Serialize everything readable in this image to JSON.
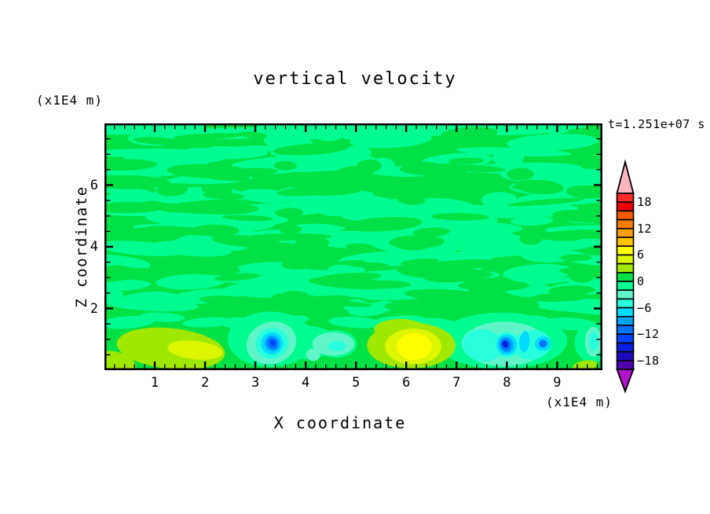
{
  "chart_data": {
    "type": "filled_contour",
    "title": "vertical velocity",
    "time_label": "t=1.251e+07 s",
    "x_axis": {
      "label": "X coordinate",
      "unit_label": "(x1E4 m)",
      "min": 0,
      "max": 9.9,
      "major_tick_values": [
        1,
        2,
        3,
        4,
        5,
        6,
        7,
        8,
        9
      ],
      "minor_tick_step": 0.2
    },
    "y_axis": {
      "label": "Z coordinate",
      "unit_label": "(x1E4 m)",
      "min": 0,
      "max": 8,
      "major_tick_values": [
        2,
        4,
        6
      ],
      "minor_tick_step": 0.5
    },
    "colorbar": {
      "level_min": -20,
      "level_max": 20,
      "level_step": 2,
      "labels": [
        {
          "text": "18",
          "value": 18
        },
        {
          "text": "12",
          "value": 12
        },
        {
          "text": "6",
          "value": 6
        },
        {
          "text": "0",
          "value": 0
        },
        {
          "text": "−6",
          "value": -6
        },
        {
          "text": "−12",
          "value": -12
        },
        {
          "text": "−18",
          "value": -18
        }
      ],
      "colors_top_to_bottom": [
        "#FF2A2A",
        "#F00000",
        "#FA5A00",
        "#FF7D00",
        "#FF9E00",
        "#FFC300",
        "#FFFF00",
        "#DCF500",
        "#A0E800",
        "#00E145",
        "#00FB90",
        "#5FF5C8",
        "#28FFDC",
        "#00DCFF",
        "#00A5FF",
        "#0073FF",
        "#0041FA",
        "#0A1EE1",
        "#1E0ABE",
        "#5000AF"
      ],
      "over_color": "#FFB4BE",
      "under_color": "#AF14C8"
    },
    "field": {
      "background_level_color": "#00E145",
      "streak_color": "#00FB90",
      "texture": {
        "seed": 42,
        "spring_count": 170,
        "green_count": 92
      },
      "features": [
        {
          "x": 0.45,
          "z": 1.55,
          "rx": 0.55,
          "rz": 0.2,
          "rot": -4,
          "color": "#00FB90"
        },
        {
          "x": 1.15,
          "z": 1.72,
          "rx": 0.45,
          "rz": 0.15,
          "rot": 3,
          "color": "#00FB90"
        },
        {
          "x": 2.05,
          "z": 1.55,
          "rx": 0.5,
          "rz": 0.16,
          "rot": -3,
          "color": "#00FB90"
        },
        {
          "x": 2.78,
          "z": 1.5,
          "rx": 0.5,
          "rz": 0.2,
          "rot": 4,
          "color": "#00FB90"
        },
        {
          "x": 3.62,
          "z": 1.62,
          "rx": 0.45,
          "rz": 0.15,
          "rot": -4,
          "color": "#00FB90"
        },
        {
          "x": 5.0,
          "z": 1.55,
          "rx": 0.55,
          "rz": 0.18,
          "rot": 3,
          "color": "#00FB90"
        },
        {
          "x": 5.88,
          "z": 1.62,
          "rx": 0.5,
          "rz": 0.15,
          "rot": -3,
          "color": "#00FB90"
        },
        {
          "x": 6.62,
          "z": 1.5,
          "rx": 0.45,
          "rz": 0.18,
          "rot": 4,
          "color": "#00FB90"
        },
        {
          "x": 8.35,
          "z": 1.58,
          "rx": 0.5,
          "rz": 0.18,
          "rot": -4,
          "color": "#00FB90"
        },
        {
          "x": 9.25,
          "z": 1.5,
          "rx": 0.55,
          "rz": 0.2,
          "rot": 3,
          "color": "#00FB90"
        },
        {
          "x": 3.3,
          "z": 1.0,
          "rx": 0.85,
          "rz": 0.9,
          "rot": 0,
          "color": "#00FB90"
        },
        {
          "x": 3.95,
          "z": 0.9,
          "rx": 0.7,
          "rz": 0.55,
          "rot": 0,
          "color": "#00FB90"
        },
        {
          "x": 4.6,
          "z": 0.85,
          "rx": 0.42,
          "rz": 0.45,
          "rot": 0,
          "color": "#00FB90"
        },
        {
          "x": 7.9,
          "z": 0.95,
          "rx": 1.3,
          "rz": 0.92,
          "rot": 0,
          "color": "#00FB90"
        },
        {
          "x": 9.7,
          "z": 0.9,
          "rx": 0.35,
          "rz": 0.65,
          "rot": 0,
          "color": "#00FB90"
        },
        {
          "x": 1.32,
          "z": 0.7,
          "rx": 1.08,
          "rz": 0.66,
          "rot": 6,
          "color": "#A0E800"
        },
        {
          "x": 1.8,
          "z": 0.65,
          "rx": 0.55,
          "rz": 0.3,
          "rot": 6,
          "color": "#DCF500"
        },
        {
          "x": 0.05,
          "z": 0.08,
          "rx": 0.58,
          "rz": 0.55,
          "rot": 0,
          "color": "#A0E800"
        },
        {
          "x": 9.55,
          "z": 0.14,
          "rx": 0.25,
          "rz": 0.17,
          "rot": -10,
          "color": "#A0E800"
        },
        {
          "x": 5.88,
          "z": 1.32,
          "rx": 0.52,
          "rz": 0.34,
          "rot": 0,
          "color": "#A0E800"
        },
        {
          "x": 6.1,
          "z": 0.8,
          "rx": 0.88,
          "rz": 0.74,
          "rot": 0,
          "color": "#A0E800"
        },
        {
          "x": 6.14,
          "z": 0.77,
          "rx": 0.56,
          "rz": 0.58,
          "rot": 0,
          "color": "#DCF500"
        },
        {
          "x": 6.16,
          "z": 0.77,
          "rx": 0.35,
          "rz": 0.44,
          "rot": 0,
          "color": "#FFFF00"
        },
        {
          "x": 3.32,
          "z": 0.88,
          "rx": 0.5,
          "rz": 0.68,
          "rot": -18,
          "color": "#5FF5C8"
        },
        {
          "x": 3.33,
          "z": 0.87,
          "rx": 0.33,
          "rz": 0.5,
          "rot": -20,
          "color": "#28FFDC"
        },
        {
          "x": 3.33,
          "z": 0.87,
          "rx": 0.22,
          "rz": 0.36,
          "rot": -22,
          "color": "#00DCFF"
        },
        {
          "x": 3.34,
          "z": 0.87,
          "rx": 0.15,
          "rz": 0.26,
          "rot": -25,
          "color": "#00A5FF"
        },
        {
          "x": 3.34,
          "z": 0.87,
          "rx": 0.1,
          "rz": 0.19,
          "rot": -25,
          "color": "#0073FF"
        },
        {
          "x": 3.35,
          "z": 0.89,
          "rx": 0.05,
          "rz": 0.1,
          "rot": -25,
          "color": "#0041FA"
        },
        {
          "x": 4.55,
          "z": 0.85,
          "rx": 0.42,
          "rz": 0.38,
          "rot": 0,
          "color": "#5FF5C8"
        },
        {
          "x": 4.62,
          "z": 0.78,
          "rx": 0.18,
          "rz": 0.16,
          "rot": 0,
          "color": "#28FFDC"
        },
        {
          "x": 4.15,
          "z": 0.5,
          "rx": 0.14,
          "rz": 0.2,
          "rot": 0,
          "color": "#5FF5C8"
        },
        {
          "x": 7.95,
          "z": 0.85,
          "rx": 0.85,
          "rz": 0.72,
          "rot": 0,
          "color": "#5FF5C8"
        },
        {
          "x": 7.52,
          "z": 0.8,
          "rx": 0.4,
          "rz": 0.52,
          "rot": 8,
          "color": "#28FFDC"
        },
        {
          "x": 8.5,
          "z": 0.82,
          "rx": 0.38,
          "rz": 0.48,
          "rot": -8,
          "color": "#28FFDC"
        },
        {
          "x": 8.0,
          "z": 0.82,
          "rx": 0.26,
          "rz": 0.42,
          "rot": -12,
          "color": "#28FFDC"
        },
        {
          "x": 8.0,
          "z": 0.82,
          "rx": 0.2,
          "rz": 0.34,
          "rot": -14,
          "color": "#00DCFF"
        },
        {
          "x": 7.99,
          "z": 0.82,
          "rx": 0.14,
          "rz": 0.26,
          "rot": -15,
          "color": "#00A5FF"
        },
        {
          "x": 7.98,
          "z": 0.82,
          "rx": 0.1,
          "rz": 0.19,
          "rot": -15,
          "color": "#0073FF"
        },
        {
          "x": 7.97,
          "z": 0.84,
          "rx": 0.055,
          "rz": 0.115,
          "rot": -15,
          "color": "#0A1EE1"
        },
        {
          "x": 8.35,
          "z": 0.92,
          "rx": 0.1,
          "rz": 0.35,
          "rot": 5,
          "color": "#00DCFF"
        },
        {
          "x": 8.72,
          "z": 0.86,
          "rx": 0.16,
          "rz": 0.24,
          "rot": 0,
          "color": "#00DCFF"
        },
        {
          "x": 8.72,
          "z": 0.86,
          "rx": 0.08,
          "rz": 0.13,
          "rot": 0,
          "color": "#0073FF"
        },
        {
          "x": 9.72,
          "z": 0.92,
          "rx": 0.17,
          "rz": 0.48,
          "rot": 0,
          "color": "#5FF5C8"
        },
        {
          "x": 9.73,
          "z": 0.95,
          "rx": 0.09,
          "rz": 0.32,
          "rot": 0,
          "color": "#28FFDC"
        }
      ]
    }
  }
}
